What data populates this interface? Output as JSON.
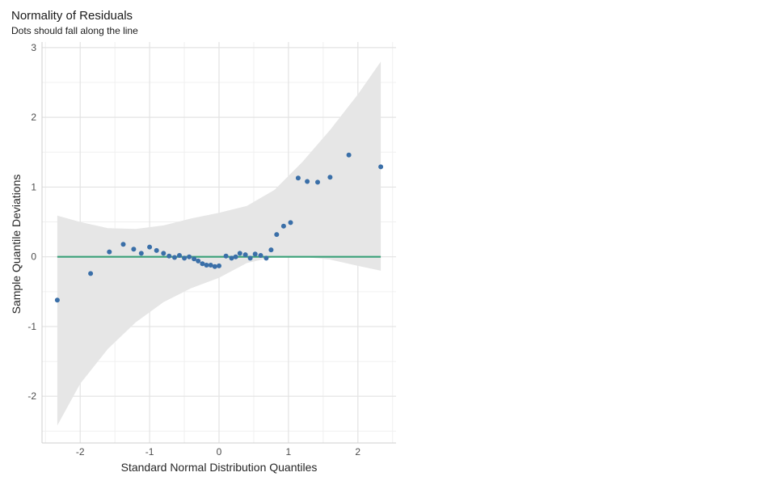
{
  "chart_data": {
    "type": "scatter",
    "title": "Normality of Residuals",
    "subtitle": "Dots should fall along the line",
    "xlabel": "Standard Normal Distribution Quantiles",
    "ylabel": "Sample Quantile Deviations",
    "xlim": [
      -2.55,
      2.55
    ],
    "ylim": [
      -2.67,
      3.08
    ],
    "xticks": [
      -2,
      -1,
      0,
      1,
      2
    ],
    "yticks": [
      -2,
      -1,
      0,
      1,
      2,
      3
    ],
    "grid": true,
    "colors": {
      "points": "#3a6fa8",
      "line": "#3aa178",
      "band": "#e6e6e6"
    },
    "reference_line": {
      "x": [
        -2.33,
        2.33
      ],
      "y": [
        0,
        0
      ]
    },
    "confidence_band": {
      "x": [
        -2.33,
        -2.0,
        -1.6,
        -1.2,
        -0.8,
        -0.4,
        0.0,
        0.4,
        0.8,
        1.2,
        1.6,
        2.0,
        2.33
      ],
      "upper": [
        0.59,
        0.5,
        0.41,
        0.4,
        0.45,
        0.55,
        0.63,
        0.73,
        0.96,
        1.36,
        1.82,
        2.33,
        2.8
      ],
      "lower": [
        -2.42,
        -1.82,
        -1.32,
        -0.94,
        -0.65,
        -0.45,
        -0.3,
        -0.09,
        0.0,
        0.0,
        -0.04,
        -0.13,
        -0.2
      ]
    },
    "points": {
      "x": [
        -2.33,
        -1.85,
        -1.58,
        -1.38,
        -1.23,
        -1.12,
        -1.0,
        -0.9,
        -0.8,
        -0.72,
        -0.64,
        -0.57,
        -0.5,
        -0.43,
        -0.36,
        -0.3,
        -0.24,
        -0.18,
        -0.12,
        -0.06,
        0.0,
        0.1,
        0.18,
        0.24,
        0.3,
        0.38,
        0.45,
        0.52,
        0.6,
        0.68,
        0.75,
        0.83,
        0.93,
        1.03,
        1.14,
        1.27,
        1.42,
        1.6,
        1.87,
        2.33
      ],
      "y": [
        -0.62,
        -0.24,
        0.07,
        0.18,
        0.11,
        0.05,
        0.14,
        0.09,
        0.05,
        0.01,
        -0.01,
        0.02,
        -0.02,
        0.0,
        -0.03,
        -0.06,
        -0.1,
        -0.12,
        -0.12,
        -0.14,
        -0.13,
        0.01,
        -0.02,
        0.0,
        0.05,
        0.03,
        -0.02,
        0.04,
        0.02,
        -0.02,
        0.1,
        0.32,
        0.44,
        0.49,
        1.13,
        1.08,
        1.07,
        1.14,
        1.46,
        1.29
      ]
    }
  }
}
